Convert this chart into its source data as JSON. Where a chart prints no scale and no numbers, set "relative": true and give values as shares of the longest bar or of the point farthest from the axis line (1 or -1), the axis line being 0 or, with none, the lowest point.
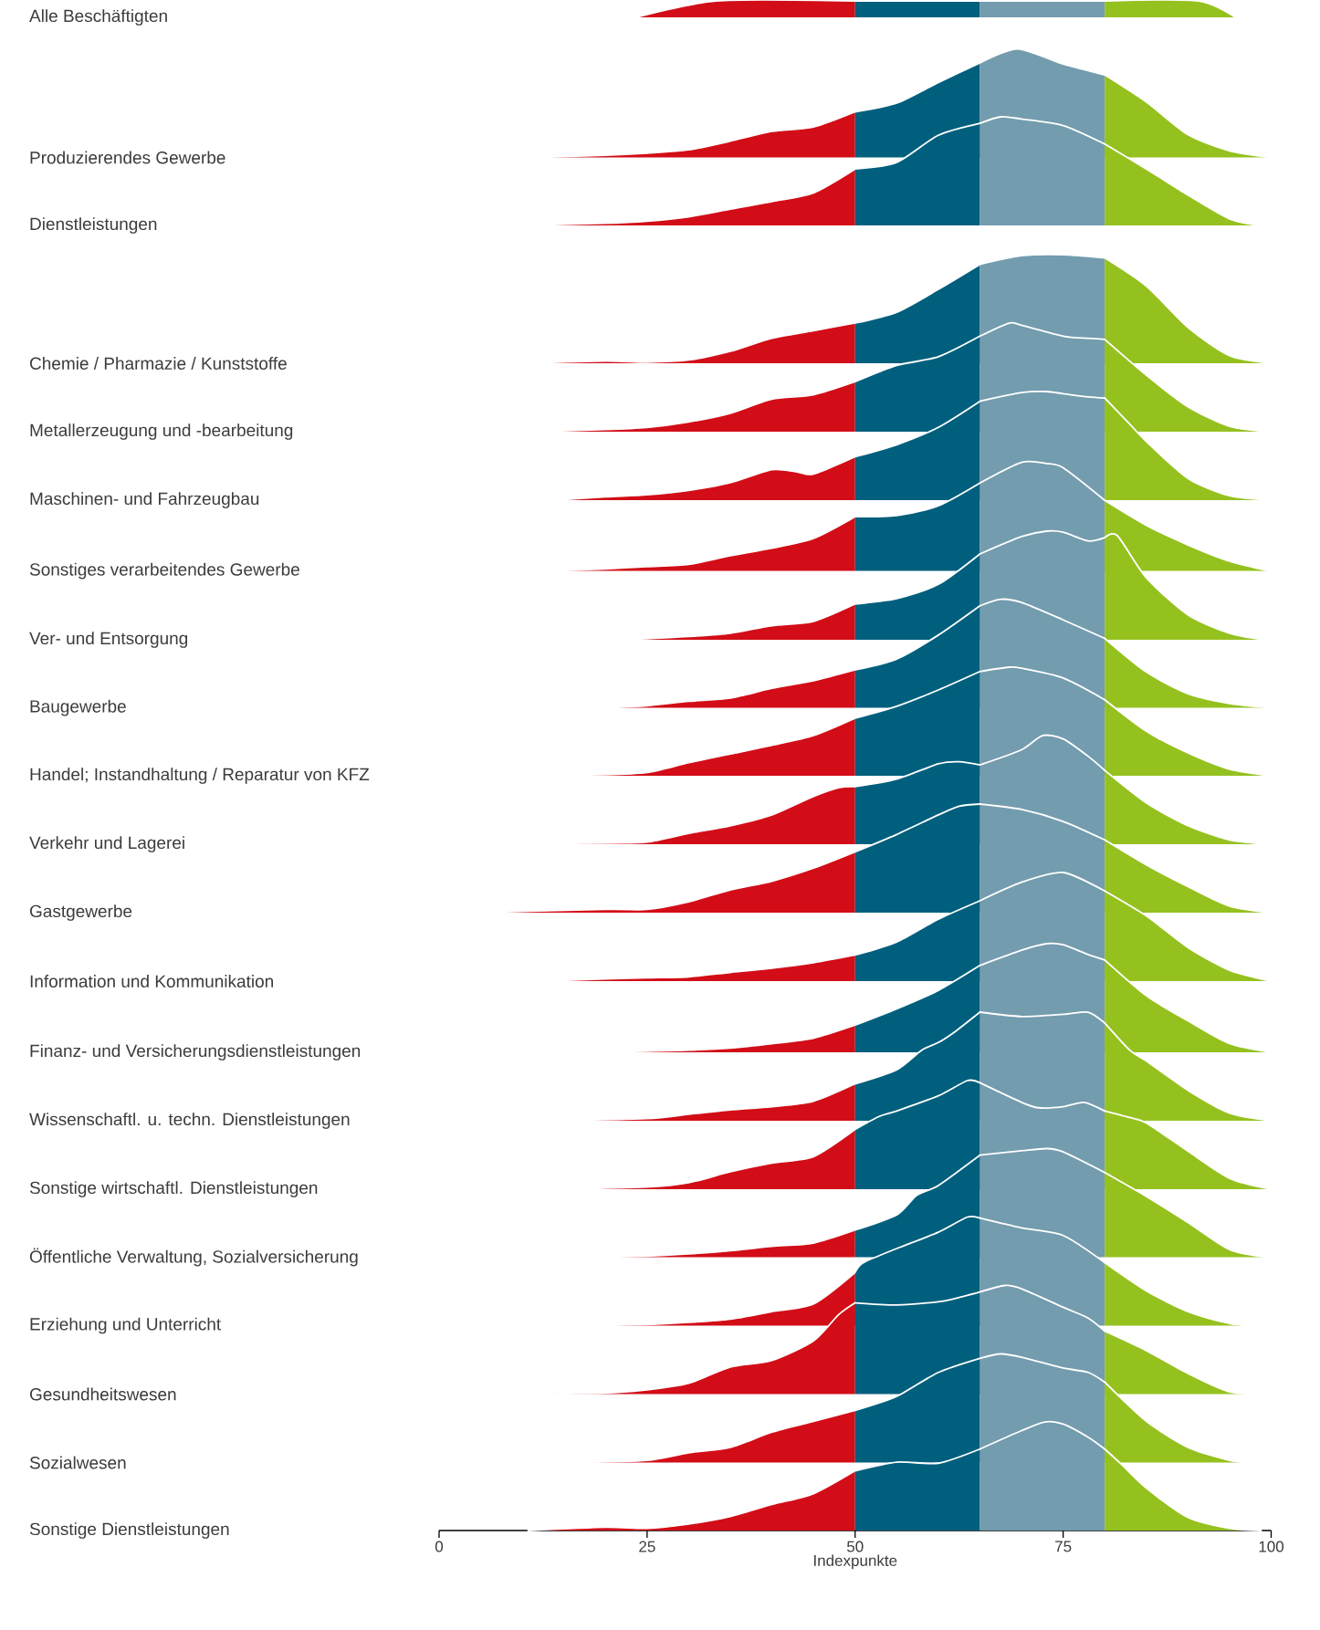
{
  "chart_data": [
    {
      "type": "area",
      "relative": true,
      "ylabel": "Alle Beschäftigten",
      "xlim": [
        0,
        100
      ],
      "tick_labels": false,
      "series": [
        {
          "color": "#d20d17",
          "x": [
            23.7,
            33.3,
            50
          ],
          "values": [
            0,
            1,
            1
          ]
        },
        {
          "color": "#005f7d",
          "x": [
            50,
            65
          ],
          "values": [
            1,
            1
          ]
        },
        {
          "color": "#739cae",
          "x": [
            65,
            80
          ],
          "values": [
            1,
            1
          ]
        },
        {
          "color": "#95c11f",
          "x": [
            80,
            91.3,
            95.7
          ],
          "values": [
            1,
            1,
            0
          ]
        }
      ]
    },
    {
      "type": "area",
      "relative": true,
      "ylabel": "Produzierendes Gewerbe",
      "xlim": [
        0,
        100
      ],
      "tick_labels": false,
      "series": [
        {
          "color": "#d20d17",
          "x": [
            11.4,
            20,
            25,
            30,
            35,
            40,
            45,
            50
          ],
          "values": [
            0,
            0.02,
            0.04,
            0.07,
            0.15,
            0.24,
            0.28,
            0.42
          ]
        },
        {
          "color": "#005f7d",
          "x": [
            50,
            55,
            60,
            65
          ],
          "values": [
            0.42,
            0.5,
            0.69,
            0.87
          ]
        },
        {
          "color": "#739cae",
          "x": [
            65,
            69.5,
            75,
            80
          ],
          "values": [
            0.87,
            1,
            0.86,
            0.76
          ]
        },
        {
          "color": "#95c11f",
          "x": [
            80,
            85,
            90,
            95,
            100
          ],
          "values": [
            0.76,
            0.51,
            0.21,
            0.06,
            0
          ]
        }
      ]
    },
    {
      "type": "area",
      "relative": true,
      "ylabel": "Dienstleistungen",
      "xlim": [
        0,
        100
      ],
      "tick_labels": false,
      "series": [
        {
          "color": "#d20d17",
          "x": [
            9.3,
            20,
            25,
            30,
            35,
            40,
            45,
            50
          ],
          "values": [
            0,
            0.02,
            0.04,
            0.08,
            0.15,
            0.22,
            0.3,
            0.52
          ]
        },
        {
          "color": "#005f7d",
          "x": [
            50,
            55,
            60,
            65
          ],
          "values": [
            0.52,
            0.58,
            0.83,
            0.94
          ]
        },
        {
          "color": "#739cae",
          "x": [
            65,
            67.5,
            70,
            75,
            80
          ],
          "values": [
            0.94,
            1,
            0.98,
            0.92,
            0.75
          ]
        },
        {
          "color": "#95c11f",
          "x": [
            80,
            85,
            90,
            95,
            98.8
          ],
          "values": [
            0.75,
            0.52,
            0.28,
            0.06,
            0
          ]
        }
      ]
    },
    {
      "type": "area",
      "relative": true,
      "ylabel": "Chemie / Pharmazie / Kunststoffe",
      "xlim": [
        0,
        100
      ],
      "tick_labels": false,
      "series": [
        {
          "color": "#d20d17",
          "x": [
            10,
            20,
            25,
            30,
            35,
            40,
            45,
            50
          ],
          "values": [
            0,
            0.02,
            0.01,
            0.03,
            0.11,
            0.23,
            0.3,
            0.37
          ]
        },
        {
          "color": "#005f7d",
          "x": [
            50,
            55,
            60,
            65
          ],
          "values": [
            0.37,
            0.47,
            0.68,
            0.91
          ]
        },
        {
          "color": "#739cae",
          "x": [
            65,
            70,
            75,
            80
          ],
          "values": [
            0.91,
            0.99,
            1,
            0.97
          ]
        },
        {
          "color": "#95c11f",
          "x": [
            80,
            85,
            90,
            95,
            100
          ],
          "values": [
            0.97,
            0.71,
            0.33,
            0.07,
            0
          ]
        }
      ]
    },
    {
      "type": "area",
      "relative": true,
      "ylabel": "Metallerzeugung und -bearbeitung",
      "xlim": [
        0,
        100
      ],
      "tick_labels": false,
      "series": [
        {
          "color": "#d20d17",
          "x": [
            11,
            20,
            25,
            30,
            35,
            40,
            45,
            50
          ],
          "values": [
            0,
            0.02,
            0.04,
            0.09,
            0.17,
            0.3,
            0.34,
            0.46
          ]
        },
        {
          "color": "#005f7d",
          "x": [
            50,
            55,
            60,
            65
          ],
          "values": [
            0.46,
            0.61,
            0.69,
            0.88
          ]
        },
        {
          "color": "#739cae",
          "x": [
            65,
            68.5,
            70,
            75,
            78,
            80
          ],
          "values": [
            0.88,
            1,
            0.98,
            0.88,
            0.86,
            0.85
          ]
        },
        {
          "color": "#95c11f",
          "x": [
            80,
            85,
            90,
            95,
            100
          ],
          "values": [
            0.85,
            0.52,
            0.23,
            0.05,
            0
          ]
        }
      ]
    },
    {
      "type": "area",
      "relative": true,
      "ylabel": "Maschinen- und Fahrzeugbau",
      "xlim": [
        0,
        100
      ],
      "tick_labels": false,
      "series": [
        {
          "color": "#d20d17",
          "x": [
            13.8,
            20,
            25,
            30,
            35,
            40,
            43,
            45,
            50
          ],
          "values": [
            0,
            0.03,
            0.05,
            0.09,
            0.16,
            0.28,
            0.26,
            0.24,
            0.4
          ]
        },
        {
          "color": "#005f7d",
          "x": [
            50,
            55,
            60,
            65
          ],
          "values": [
            0.4,
            0.51,
            0.67,
            0.91
          ]
        },
        {
          "color": "#739cae",
          "x": [
            65,
            70,
            73,
            75,
            78,
            80
          ],
          "values": [
            0.91,
            0.99,
            1,
            0.98,
            0.95,
            0.94
          ]
        },
        {
          "color": "#95c11f",
          "x": [
            80,
            83,
            85,
            90,
            95,
            100
          ],
          "values": [
            0.94,
            0.7,
            0.54,
            0.2,
            0.04,
            0
          ]
        }
      ]
    },
    {
      "type": "area",
      "relative": true,
      "ylabel": "Sonstiges verarbeitendes Gewerbe",
      "xlim": [
        0,
        100
      ],
      "tick_labels": false,
      "series": [
        {
          "color": "#d20d17",
          "x": [
            14,
            20,
            25,
            30,
            35,
            40,
            45,
            50
          ],
          "values": [
            0,
            0.02,
            0.04,
            0.06,
            0.14,
            0.21,
            0.3,
            0.5
          ]
        },
        {
          "color": "#005f7d",
          "x": [
            50,
            55,
            60,
            65
          ],
          "values": [
            0.5,
            0.51,
            0.6,
            0.81
          ]
        },
        {
          "color": "#739cae",
          "x": [
            65,
            70,
            73,
            75,
            80
          ],
          "values": [
            0.81,
            1,
            0.99,
            0.95,
            0.65
          ]
        },
        {
          "color": "#95c11f",
          "x": [
            80,
            85,
            90,
            95,
            99.8
          ],
          "values": [
            0.65,
            0.42,
            0.24,
            0.09,
            0
          ]
        }
      ]
    },
    {
      "type": "area",
      "relative": true,
      "ylabel": "Ver- und Entsorgung",
      "xlim": [
        0,
        100
      ],
      "tick_labels": false,
      "series": [
        {
          "color": "#d20d17",
          "x": [
            21,
            25,
            30,
            35,
            40,
            45,
            50
          ],
          "values": [
            0,
            0.01,
            0.03,
            0.06,
            0.13,
            0.17,
            0.33
          ]
        },
        {
          "color": "#005f7d",
          "x": [
            50,
            55,
            60,
            65
          ],
          "values": [
            0.33,
            0.38,
            0.51,
            0.79
          ]
        },
        {
          "color": "#739cae",
          "x": [
            65,
            70,
            73,
            75,
            78,
            80
          ],
          "values": [
            0.79,
            0.95,
            1,
            0.99,
            0.91,
            0.94
          ]
        },
        {
          "color": "#95c11f",
          "x": [
            80,
            81.5,
            85,
            90,
            95,
            99.2
          ],
          "values": [
            0.94,
            0.96,
            0.57,
            0.23,
            0.06,
            0
          ]
        }
      ]
    },
    {
      "type": "area",
      "relative": true,
      "ylabel": "Baugewerbe",
      "xlim": [
        0,
        100
      ],
      "tick_labels": false,
      "series": [
        {
          "color": "#d20d17",
          "x": [
            19.6,
            25,
            30,
            35,
            40,
            45,
            50
          ],
          "values": [
            0,
            0.02,
            0.06,
            0.09,
            0.18,
            0.25,
            0.35
          ]
        },
        {
          "color": "#005f7d",
          "x": [
            50,
            55,
            60,
            65
          ],
          "values": [
            0.35,
            0.45,
            0.67,
            0.94
          ]
        },
        {
          "color": "#739cae",
          "x": [
            65,
            67.5,
            70,
            75,
            80
          ],
          "values": [
            0.94,
            1,
            0.97,
            0.81,
            0.64
          ]
        },
        {
          "color": "#95c11f",
          "x": [
            80,
            85,
            90,
            95,
            100
          ],
          "values": [
            0.64,
            0.33,
            0.13,
            0.04,
            0
          ]
        }
      ]
    },
    {
      "type": "area",
      "relative": true,
      "ylabel": "Handel; Instandhaltung / Reparatur von KFZ",
      "xlim": [
        0,
        100
      ],
      "tick_labels": false,
      "series": [
        {
          "color": "#d20d17",
          "x": [
            6.6,
            20,
            25,
            30,
            35,
            40,
            45,
            50
          ],
          "values": [
            0,
            0.01,
            0.03,
            0.12,
            0.2,
            0.28,
            0.37,
            0.53
          ]
        },
        {
          "color": "#005f7d",
          "x": [
            50,
            55,
            60,
            65
          ],
          "values": [
            0.53,
            0.64,
            0.79,
            0.96
          ]
        },
        {
          "color": "#739cae",
          "x": [
            65,
            68.5,
            70,
            75,
            80
          ],
          "values": [
            0.96,
            1,
            0.99,
            0.9,
            0.7
          ]
        },
        {
          "color": "#95c11f",
          "x": [
            80,
            85,
            90,
            95,
            100
          ],
          "values": [
            0.7,
            0.41,
            0.21,
            0.06,
            0
          ]
        }
      ]
    },
    {
      "type": "area",
      "relative": true,
      "ylabel": "Verkehr und Lagerei",
      "xlim": [
        0,
        100
      ],
      "tick_labels": false,
      "series": [
        {
          "color": "#d20d17",
          "x": [
            2.8,
            20,
            25,
            30,
            35,
            40,
            45,
            48,
            50
          ],
          "values": [
            0,
            0.01,
            0.02,
            0.1,
            0.17,
            0.27,
            0.44,
            0.52,
            0.53
          ]
        },
        {
          "color": "#005f7d",
          "x": [
            50,
            55,
            60,
            62.5,
            65
          ],
          "values": [
            0.53,
            0.6,
            0.74,
            0.76,
            0.73
          ]
        },
        {
          "color": "#739cae",
          "x": [
            65,
            70,
            72.5,
            75,
            78,
            80
          ],
          "values": [
            0.73,
            0.87,
            1,
            0.97,
            0.81,
            0.68
          ]
        },
        {
          "color": "#95c11f",
          "x": [
            80,
            85,
            90,
            95,
            100
          ],
          "values": [
            0.68,
            0.38,
            0.17,
            0.04,
            0
          ]
        }
      ]
    },
    {
      "type": "area",
      "relative": true,
      "ylabel": "Gastgewerbe",
      "xlim": [
        0,
        100
      ],
      "tick_labels": false,
      "series": [
        {
          "color": "#d20d17",
          "x": [
            3.8,
            20,
            25,
            30,
            35,
            40,
            45,
            50
          ],
          "values": [
            0,
            0.03,
            0.03,
            0.1,
            0.21,
            0.29,
            0.41,
            0.56
          ]
        },
        {
          "color": "#005f7d",
          "x": [
            50,
            55,
            60,
            62.5,
            65
          ],
          "values": [
            0.56,
            0.72,
            0.9,
            0.98,
            1
          ]
        },
        {
          "color": "#739cae",
          "x": [
            65,
            70,
            75,
            80
          ],
          "values": [
            1,
            0.95,
            0.84,
            0.67
          ]
        },
        {
          "color": "#95c11f",
          "x": [
            80,
            85,
            90,
            95,
            100
          ],
          "values": [
            0.67,
            0.44,
            0.24,
            0.06,
            0
          ]
        }
      ]
    },
    {
      "type": "area",
      "relative": true,
      "ylabel": "Information und Kommunikation",
      "xlim": [
        0,
        100
      ],
      "tick_labels": false,
      "series": [
        {
          "color": "#d20d17",
          "x": [
            12,
            20,
            25,
            30,
            35,
            40,
            45,
            50
          ],
          "values": [
            0,
            0.02,
            0.03,
            0.04,
            0.08,
            0.12,
            0.17,
            0.24
          ]
        },
        {
          "color": "#005f7d",
          "x": [
            50,
            55,
            60,
            65
          ],
          "values": [
            0.24,
            0.36,
            0.57,
            0.74
          ]
        },
        {
          "color": "#739cae",
          "x": [
            65,
            70,
            75,
            80
          ],
          "values": [
            0.74,
            0.91,
            1,
            0.83
          ]
        },
        {
          "color": "#95c11f",
          "x": [
            80,
            85,
            90,
            95,
            100
          ],
          "values": [
            0.83,
            0.6,
            0.31,
            0.1,
            0
          ]
        }
      ]
    },
    {
      "type": "area",
      "relative": true,
      "ylabel": "Finanz- und Versicherungsdienstleistungen",
      "xlim": [
        0,
        100
      ],
      "tick_labels": false,
      "series": [
        {
          "color": "#d20d17",
          "x": [
            17.6,
            25,
            30,
            35,
            40,
            45,
            50
          ],
          "values": [
            0,
            0.01,
            0.02,
            0.04,
            0.08,
            0.13,
            0.25
          ]
        },
        {
          "color": "#005f7d",
          "x": [
            50,
            55,
            60,
            65
          ],
          "values": [
            0.25,
            0.4,
            0.57,
            0.8
          ]
        },
        {
          "color": "#739cae",
          "x": [
            65,
            70,
            73,
            75,
            78,
            80
          ],
          "values": [
            0.8,
            0.94,
            1,
            0.99,
            0.9,
            0.85
          ]
        },
        {
          "color": "#95c11f",
          "x": [
            80,
            85,
            90,
            95,
            100
          ],
          "values": [
            0.85,
            0.52,
            0.29,
            0.08,
            0
          ]
        }
      ]
    },
    {
      "type": "area",
      "relative": true,
      "ylabel": "Wissenschaftl. u. techn. Dienstleistungen",
      "xlim": [
        0,
        100
      ],
      "tick_labels": false,
      "series": [
        {
          "color": "#d20d17",
          "x": [
            12.8,
            25,
            30,
            35,
            40,
            45,
            50
          ],
          "values": [
            0,
            0.02,
            0.06,
            0.1,
            0.13,
            0.18,
            0.34
          ]
        },
        {
          "color": "#005f7d",
          "x": [
            50,
            55,
            58,
            60,
            62,
            65
          ],
          "values": [
            0.34,
            0.47,
            0.65,
            0.72,
            0.82,
            1
          ]
        },
        {
          "color": "#739cae",
          "x": [
            65,
            70,
            75,
            78,
            80
          ],
          "values": [
            1,
            0.96,
            0.98,
            1,
            0.9
          ]
        },
        {
          "color": "#95c11f",
          "x": [
            80,
            83,
            85,
            90,
            95,
            100
          ],
          "values": [
            0.9,
            0.65,
            0.55,
            0.28,
            0.07,
            0
          ]
        }
      ]
    },
    {
      "type": "area",
      "relative": true,
      "ylabel": "Sonstige wirtschaftl. Dienstleistungen",
      "xlim": [
        0,
        100
      ],
      "tick_labels": false,
      "series": [
        {
          "color": "#d20d17",
          "x": [
            14.5,
            25,
            30,
            35,
            40,
            45,
            50
          ],
          "values": [
            0,
            0.02,
            0.06,
            0.16,
            0.24,
            0.3,
            0.55
          ]
        },
        {
          "color": "#005f7d",
          "x": [
            50,
            52.9,
            55,
            60,
            63.5,
            65
          ],
          "values": [
            0.55,
            0.67,
            0.72,
            0.86,
            1,
            0.98
          ]
        },
        {
          "color": "#739cae",
          "x": [
            65,
            70,
            72,
            75,
            77.5,
            80
          ],
          "values": [
            0.98,
            0.8,
            0.75,
            0.76,
            0.8,
            0.72
          ]
        },
        {
          "color": "#95c11f",
          "x": [
            80,
            83,
            85,
            90,
            95,
            100
          ],
          "values": [
            0.72,
            0.66,
            0.61,
            0.35,
            0.1,
            0
          ]
        }
      ]
    },
    {
      "type": "area",
      "relative": true,
      "ylabel": "Öffentliche Verwaltung, Sozialversicherung",
      "xlim": [
        0,
        100
      ],
      "tick_labels": false,
      "series": [
        {
          "color": "#d20d17",
          "x": [
            17.6,
            25,
            30,
            35,
            40,
            45,
            50
          ],
          "values": [
            0,
            0.01,
            0.03,
            0.06,
            0.1,
            0.13,
            0.25
          ]
        },
        {
          "color": "#005f7d",
          "x": [
            50,
            55,
            57.4,
            60,
            65
          ],
          "values": [
            0.25,
            0.39,
            0.57,
            0.66,
            0.94
          ]
        },
        {
          "color": "#739cae",
          "x": [
            65,
            70,
            73,
            75,
            80
          ],
          "values": [
            0.94,
            0.98,
            1,
            0.97,
            0.78
          ]
        },
        {
          "color": "#95c11f",
          "x": [
            80,
            85,
            90,
            95,
            99.5
          ],
          "values": [
            0.78,
            0.56,
            0.32,
            0.07,
            0
          ]
        }
      ]
    },
    {
      "type": "area",
      "relative": true,
      "ylabel": "Erziehung und Unterricht",
      "xlim": [
        0,
        100
      ],
      "tick_labels": false,
      "series": [
        {
          "color": "#d20d17",
          "x": [
            18.6,
            25,
            30,
            35,
            40,
            45,
            50
          ],
          "values": [
            0,
            0.01,
            0.03,
            0.06,
            0.13,
            0.2,
            0.49
          ]
        },
        {
          "color": "#005f7d",
          "x": [
            50,
            51,
            55,
            60,
            63.5,
            65
          ],
          "values": [
            0.49,
            0.58,
            0.71,
            0.86,
            1,
            0.99
          ]
        },
        {
          "color": "#739cae",
          "x": [
            65,
            70,
            75,
            80
          ],
          "values": [
            0.99,
            0.9,
            0.83,
            0.58
          ]
        },
        {
          "color": "#95c11f",
          "x": [
            80,
            85,
            90,
            95,
            97.5
          ],
          "values": [
            0.58,
            0.32,
            0.13,
            0.02,
            0
          ]
        }
      ]
    },
    {
      "type": "area",
      "relative": true,
      "ylabel": "Gesundheitswesen",
      "xlim": [
        0,
        100
      ],
      "tick_labels": false,
      "series": [
        {
          "color": "#d20d17",
          "x": [
            9.3,
            20,
            25,
            30,
            35,
            40,
            45,
            48,
            50
          ],
          "values": [
            0,
            0.01,
            0.04,
            0.1,
            0.25,
            0.31,
            0.49,
            0.73,
            0.84
          ]
        },
        {
          "color": "#005f7d",
          "x": [
            50,
            55,
            60,
            62,
            65
          ],
          "values": [
            0.84,
            0.82,
            0.85,
            0.88,
            0.94
          ]
        },
        {
          "color": "#739cae",
          "x": [
            65,
            68,
            70,
            75,
            78,
            80
          ],
          "values": [
            0.94,
            1,
            0.97,
            0.8,
            0.7,
            0.58
          ]
        },
        {
          "color": "#95c11f",
          "x": [
            80,
            85,
            90,
            95,
            100
          ],
          "values": [
            0.58,
            0.4,
            0.19,
            0.02,
            0
          ]
        }
      ]
    },
    {
      "type": "area",
      "relative": true,
      "ylabel": "Sozialwesen",
      "xlim": [
        0,
        100
      ],
      "tick_labels": false,
      "series": [
        {
          "color": "#d20d17",
          "x": [
            16.5,
            25,
            30,
            35,
            40,
            45,
            50
          ],
          "values": [
            0,
            0.02,
            0.09,
            0.14,
            0.28,
            0.38,
            0.48
          ]
        },
        {
          "color": "#005f7d",
          "x": [
            50,
            55,
            60,
            65
          ],
          "values": [
            0.48,
            0.61,
            0.83,
            0.96
          ]
        },
        {
          "color": "#739cae",
          "x": [
            65,
            67.5,
            70,
            75,
            78,
            80
          ],
          "values": [
            0.96,
            1,
            0.97,
            0.87,
            0.83,
            0.74
          ]
        },
        {
          "color": "#95c11f",
          "x": [
            80,
            85,
            90,
            95,
            97.8
          ],
          "values": [
            0.74,
            0.38,
            0.14,
            0.02,
            0
          ]
        }
      ]
    },
    {
      "type": "area",
      "relative": true,
      "ylabel": "Sonstige Dienstleistungen",
      "xlabel": "Indexpunkte",
      "xlim": [
        0,
        100
      ],
      "xticks": [
        0,
        25,
        50,
        75,
        100
      ],
      "tick_labels": "x",
      "series": [
        {
          "color": "#d20d17",
          "x": [
            10.7,
            20,
            25,
            30,
            35,
            40,
            45,
            50
          ],
          "values": [
            0,
            0.03,
            0.02,
            0.06,
            0.13,
            0.24,
            0.34,
            0.55
          ]
        },
        {
          "color": "#005f7d",
          "x": [
            50,
            55,
            60,
            65
          ],
          "values": [
            0.55,
            0.63,
            0.62,
            0.75
          ]
        },
        {
          "color": "#739cae",
          "x": [
            65,
            70,
            72.8,
            75,
            78,
            80
          ],
          "values": [
            0.75,
            0.92,
            1,
            0.98,
            0.86,
            0.75
          ]
        },
        {
          "color": "#95c11f",
          "x": [
            80,
            82,
            85,
            90,
            95,
            98.8
          ],
          "values": [
            0.75,
            0.61,
            0.39,
            0.12,
            0.02,
            0
          ]
        }
      ]
    }
  ]
}
